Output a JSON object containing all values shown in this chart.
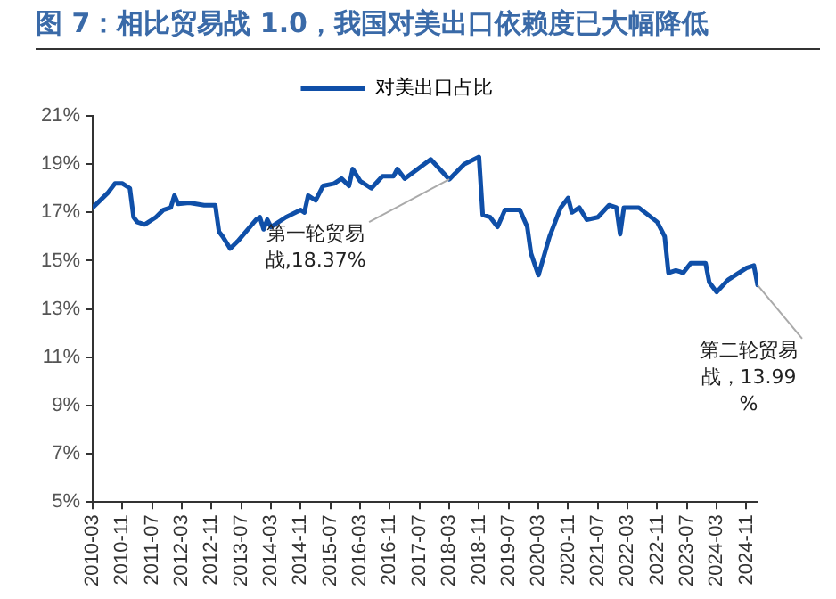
{
  "chart_data": {
    "type": "line",
    "title": "图 7：相比贸易战 1.0，我国对美出口依赖度已大幅降低",
    "x": [
      "2010-03",
      "2010-07",
      "2010-09",
      "2010-11",
      "2011-01",
      "2011-02",
      "2011-03",
      "2011-05",
      "2011-08",
      "2011-10",
      "2011-12",
      "2012-01",
      "2012-02",
      "2012-05",
      "2012-09",
      "2012-12",
      "2013-01",
      "2013-02",
      "2013-04",
      "2013-06",
      "2013-11",
      "2013-12",
      "2014-01",
      "2014-02",
      "2014-03",
      "2014-07",
      "2014-11",
      "2014-12",
      "2015-01",
      "2015-03",
      "2015-05",
      "2015-08",
      "2015-10",
      "2015-12",
      "2016-01",
      "2016-03",
      "2016-06",
      "2016-09",
      "2016-12",
      "2017-01",
      "2017-03",
      "2017-10",
      "2018-03",
      "2018-07",
      "2018-11",
      "2018-12",
      "2019-02",
      "2019-04",
      "2019-06",
      "2019-10",
      "2019-12",
      "2020-01",
      "2020-03",
      "2020-06",
      "2020-09",
      "2020-11",
      "2020-12",
      "2021-02",
      "2021-04",
      "2021-07",
      "2021-10",
      "2021-12",
      "2022-01",
      "2022-02",
      "2022-06",
      "2022-11",
      "2023-01",
      "2023-02",
      "2023-04",
      "2023-06",
      "2023-08",
      "2023-12",
      "2024-01",
      "2024-03",
      "2024-06",
      "2024-11",
      "2025-01",
      "2025-02"
    ],
    "series": [
      {
        "name": "对美出口占比",
        "color": "#0f4fa8",
        "values": [
          17.2,
          17.8,
          18.2,
          18.2,
          18.0,
          16.8,
          16.6,
          16.5,
          16.8,
          17.1,
          17.2,
          17.7,
          17.35,
          17.4,
          17.3,
          17.3,
          16.2,
          16.0,
          15.5,
          15.8,
          16.7,
          16.8,
          16.3,
          16.7,
          16.4,
          16.8,
          17.1,
          17.0,
          17.7,
          17.5,
          18.1,
          18.2,
          18.4,
          18.1,
          18.8,
          18.3,
          18.0,
          18.5,
          18.5,
          18.8,
          18.4,
          19.2,
          18.37,
          19.0,
          19.3,
          16.9,
          16.8,
          16.4,
          17.1,
          17.1,
          16.4,
          15.3,
          14.4,
          16.0,
          17.2,
          17.6,
          17.0,
          17.2,
          16.7,
          16.8,
          17.3,
          17.2,
          16.1,
          17.2,
          17.2,
          16.6,
          16.0,
          14.5,
          14.6,
          14.5,
          14.9,
          14.9,
          14.1,
          13.7,
          14.2,
          14.7,
          14.8,
          13.99
        ]
      }
    ],
    "xlim": [
      "2010-03",
      "2025-02"
    ],
    "xticks": [
      "2010-03",
      "2010-11",
      "2011-07",
      "2012-03",
      "2012-11",
      "2013-07",
      "2014-03",
      "2014-11",
      "2015-07",
      "2016-03",
      "2016-11",
      "2017-07",
      "2018-03",
      "2018-11",
      "2019-07",
      "2020-03",
      "2020-11",
      "2021-07",
      "2022-03",
      "2022-11",
      "2023-07",
      "2024-03",
      "2024-11"
    ],
    "ylim": [
      5,
      21
    ],
    "yticks": [
      {
        "value": 5,
        "label": "5%"
      },
      {
        "value": 7,
        "label": "7%"
      },
      {
        "value": 9,
        "label": "9%"
      },
      {
        "value": 11,
        "label": "11%"
      },
      {
        "value": 13,
        "label": "13%"
      },
      {
        "value": 15,
        "label": "15%"
      },
      {
        "value": 17,
        "label": "17%"
      },
      {
        "value": 19,
        "label": "19%"
      },
      {
        "value": 21,
        "label": "21%"
      }
    ],
    "legend": "top",
    "annotations": [
      {
        "text": "第一轮贸易战,18.37%",
        "x": "2018-03",
        "y": 18.37
      },
      {
        "text": "第二轮贸易战，13.99%",
        "x": "2025-02",
        "y": 13.99
      }
    ]
  }
}
